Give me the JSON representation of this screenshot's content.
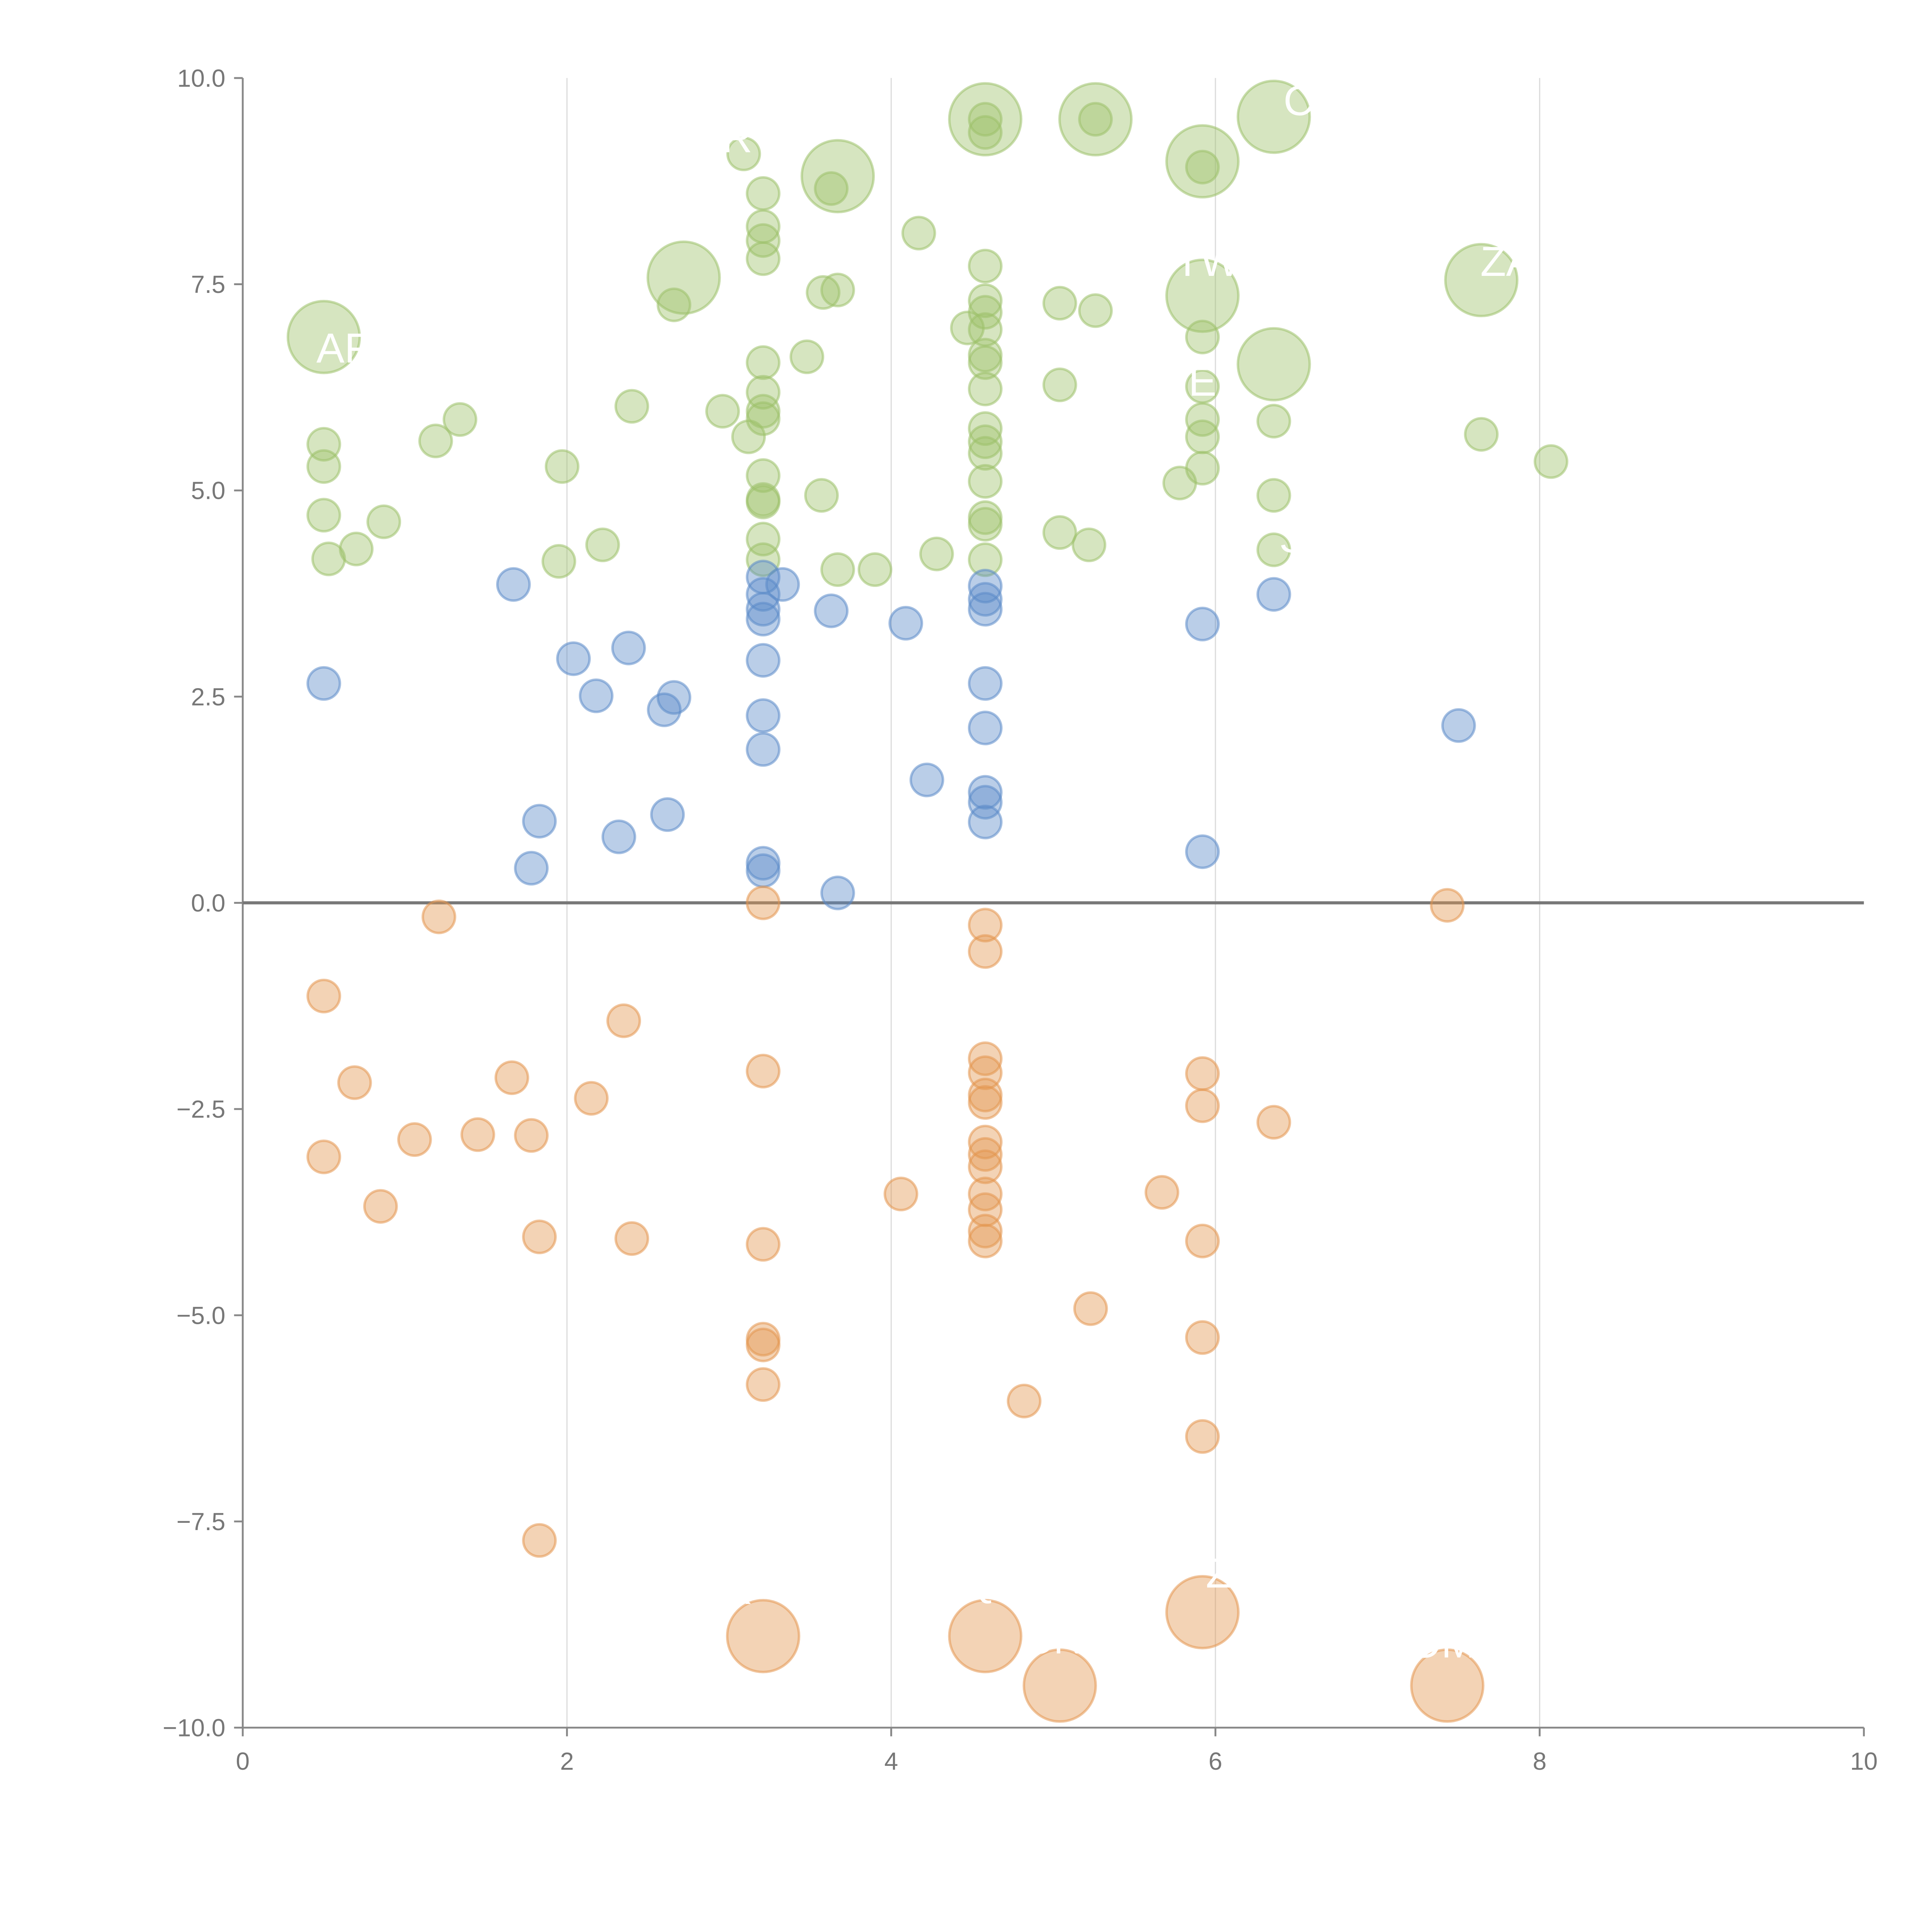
{
  "chart_data": {
    "type": "scatter",
    "title": "",
    "xlabel": "",
    "ylabel": "",
    "xlim": [
      0,
      10
    ],
    "ylim": [
      -10,
      10
    ],
    "x_ticks": [
      "0",
      "2",
      "4",
      "6",
      "8",
      "10"
    ],
    "y_ticks": [
      "10.0",
      "7.5",
      "5.0",
      "2.5",
      "0.0",
      "−2.5",
      "−5.0",
      "−7.5",
      "−10.0"
    ],
    "grid": "vertical",
    "reference_line_y": 0,
    "point_format": "[x, y, size(1=small,2=large)]",
    "series": [
      {
        "name": "green",
        "color": "#9dc16a",
        "points": [
          [
            0.5,
            5.56,
            1
          ],
          [
            0.5,
            5.29,
            1
          ],
          [
            0.5,
            4.7,
            1
          ],
          [
            0.53,
            4.17,
            1
          ],
          [
            0.7,
            4.29,
            1
          ],
          [
            0.87,
            4.62,
            1
          ],
          [
            1.19,
            5.6,
            1
          ],
          [
            1.34,
            5.86,
            1
          ],
          [
            1.97,
            5.29,
            1
          ],
          [
            1.95,
            4.14,
            1
          ],
          [
            2.22,
            4.34,
            1
          ],
          [
            2.4,
            6.02,
            1
          ],
          [
            2.66,
            7.25,
            1
          ],
          [
            2.96,
            5.96,
            1
          ],
          [
            3.12,
            5.65,
            1
          ],
          [
            3.09,
            9.08,
            1
          ],
          [
            3.21,
            8.6,
            1
          ],
          [
            3.21,
            8.2,
            1
          ],
          [
            3.21,
            8.03,
            1
          ],
          [
            3.21,
            7.81,
            1
          ],
          [
            3.21,
            6.55,
            1
          ],
          [
            3.21,
            6.19,
            1
          ],
          [
            3.21,
            5.96,
            1
          ],
          [
            3.21,
            5.87,
            1
          ],
          [
            3.21,
            5.18,
            1
          ],
          [
            3.21,
            4.89,
            1
          ],
          [
            3.21,
            4.86,
            1
          ],
          [
            3.21,
            4.41,
            1
          ],
          [
            3.21,
            4.16,
            1
          ],
          [
            3.48,
            6.62,
            1
          ],
          [
            3.58,
            7.4,
            1
          ],
          [
            3.67,
            7.43,
            1
          ],
          [
            3.63,
            8.66,
            1
          ],
          [
            3.57,
            4.94,
            1
          ],
          [
            3.67,
            4.04,
            1
          ],
          [
            3.9,
            4.04,
            1
          ],
          [
            4.17,
            8.12,
            1
          ],
          [
            4.28,
            4.23,
            1
          ],
          [
            4.47,
            6.97,
            1
          ],
          [
            4.58,
            7.72,
            1
          ],
          [
            4.58,
            7.3,
            1
          ],
          [
            4.58,
            7.16,
            1
          ],
          [
            4.58,
            6.95,
            1
          ],
          [
            4.58,
            6.64,
            1
          ],
          [
            4.58,
            6.55,
            1
          ],
          [
            4.58,
            6.23,
            1
          ],
          [
            4.58,
            5.75,
            1
          ],
          [
            4.58,
            5.59,
            1
          ],
          [
            4.58,
            5.45,
            1
          ],
          [
            4.58,
            5.11,
            1
          ],
          [
            4.58,
            4.67,
            1
          ],
          [
            4.58,
            4.59,
            1
          ],
          [
            4.58,
            4.16,
            1
          ],
          [
            4.58,
            9.5,
            1
          ],
          [
            4.58,
            9.34,
            1
          ],
          [
            5.04,
            7.27,
            1
          ],
          [
            5.26,
            7.18,
            1
          ],
          [
            5.04,
            6.28,
            1
          ],
          [
            5.04,
            4.49,
            1
          ],
          [
            5.22,
            4.34,
            1
          ],
          [
            5.26,
            9.5,
            1
          ],
          [
            5.78,
            5.09,
            1
          ],
          [
            5.92,
            8.92,
            1
          ],
          [
            5.92,
            6.86,
            1
          ],
          [
            5.92,
            6.26,
            1
          ],
          [
            5.92,
            5.86,
            1
          ],
          [
            5.92,
            5.65,
            1
          ],
          [
            5.92,
            5.27,
            1
          ],
          [
            6.36,
            5.84,
            1
          ],
          [
            6.36,
            4.94,
            1
          ],
          [
            6.36,
            4.28,
            1
          ],
          [
            7.64,
            5.68,
            1
          ],
          [
            8.07,
            5.35,
            1
          ],
          [
            0.5,
            6.86,
            2
          ],
          [
            2.72,
            7.58,
            2
          ],
          [
            3.67,
            8.81,
            2
          ],
          [
            4.58,
            9.5,
            2
          ],
          [
            5.26,
            9.5,
            2
          ],
          [
            5.92,
            8.99,
            2
          ],
          [
            5.92,
            7.36,
            2
          ],
          [
            6.36,
            9.53,
            2
          ],
          [
            6.36,
            6.53,
            2
          ],
          [
            7.64,
            7.55,
            2
          ]
        ]
      },
      {
        "name": "blue",
        "color": "#5b8bc9",
        "points": [
          [
            0.5,
            2.66,
            1
          ],
          [
            1.67,
            3.86,
            1
          ],
          [
            2.04,
            2.96,
            1
          ],
          [
            2.18,
            2.51,
            1
          ],
          [
            2.38,
            3.09,
            1
          ],
          [
            2.66,
            2.49,
            1
          ],
          [
            2.6,
            2.34,
            1
          ],
          [
            2.62,
            1.07,
            1
          ],
          [
            2.32,
            0.8,
            1
          ],
          [
            1.83,
            0.99,
            1
          ],
          [
            1.78,
            0.42,
            1
          ],
          [
            3.21,
            3.95,
            1
          ],
          [
            3.21,
            3.74,
            1
          ],
          [
            3.21,
            3.56,
            1
          ],
          [
            3.21,
            3.44,
            1
          ],
          [
            3.33,
            3.86,
            1
          ],
          [
            3.21,
            2.94,
            1
          ],
          [
            3.21,
            2.27,
            1
          ],
          [
            3.21,
            1.86,
            1
          ],
          [
            3.21,
            0.48,
            1
          ],
          [
            3.21,
            0.39,
            1
          ],
          [
            3.63,
            3.54,
            1
          ],
          [
            3.67,
            0.12,
            1
          ],
          [
            4.09,
            3.39,
            1
          ],
          [
            4.22,
            1.49,
            1
          ],
          [
            4.58,
            3.84,
            1
          ],
          [
            4.58,
            3.68,
            1
          ],
          [
            4.58,
            3.56,
            1
          ],
          [
            4.58,
            2.66,
            1
          ],
          [
            4.58,
            2.12,
            1
          ],
          [
            4.58,
            1.34,
            1
          ],
          [
            4.58,
            1.22,
            1
          ],
          [
            4.58,
            0.98,
            1
          ],
          [
            5.92,
            3.38,
            1
          ],
          [
            5.92,
            0.62,
            1
          ],
          [
            6.36,
            3.74,
            1
          ],
          [
            7.5,
            2.15,
            1
          ]
        ]
      },
      {
        "name": "orange",
        "color": "#e3954f",
        "points": [
          [
            0.5,
            -1.13,
            1
          ],
          [
            0.69,
            -2.18,
            1
          ],
          [
            0.5,
            -3.08,
            1
          ],
          [
            0.85,
            -3.68,
            1
          ],
          [
            1.06,
            -2.87,
            1
          ],
          [
            1.21,
            -0.17,
            1
          ],
          [
            1.45,
            -2.81,
            1
          ],
          [
            1.66,
            -2.12,
            1
          ],
          [
            1.78,
            -2.82,
            1
          ],
          [
            1.83,
            -4.05,
            1
          ],
          [
            1.83,
            -7.73,
            1
          ],
          [
            2.15,
            -2.37,
            1
          ],
          [
            2.35,
            -1.43,
            1
          ],
          [
            2.4,
            -4.07,
            1
          ],
          [
            3.21,
            0.0,
            1
          ],
          [
            3.21,
            -2.04,
            1
          ],
          [
            3.21,
            -4.14,
            1
          ],
          [
            3.21,
            -5.29,
            1
          ],
          [
            3.21,
            -5.36,
            1
          ],
          [
            3.21,
            -5.84,
            1
          ],
          [
            4.06,
            -3.53,
            1
          ],
          [
            4.58,
            -0.27,
            1
          ],
          [
            4.58,
            -0.59,
            1
          ],
          [
            4.58,
            -1.89,
            1
          ],
          [
            4.58,
            -2.06,
            1
          ],
          [
            4.58,
            -2.33,
            1
          ],
          [
            4.58,
            -2.42,
            1
          ],
          [
            4.58,
            -2.9,
            1
          ],
          [
            4.58,
            -3.05,
            1
          ],
          [
            4.58,
            -3.2,
            1
          ],
          [
            4.58,
            -3.53,
            1
          ],
          [
            4.58,
            -3.72,
            1
          ],
          [
            4.58,
            -3.98,
            1
          ],
          [
            4.58,
            -4.1,
            1
          ],
          [
            4.82,
            -6.04,
            1
          ],
          [
            5.23,
            -4.92,
            1
          ],
          [
            5.67,
            -3.51,
            1
          ],
          [
            5.92,
            -2.07,
            1
          ],
          [
            5.92,
            -2.46,
            1
          ],
          [
            5.92,
            -4.1,
            1
          ],
          [
            5.92,
            -5.27,
            1
          ],
          [
            5.92,
            -6.47,
            1
          ],
          [
            6.36,
            -2.66,
            1
          ],
          [
            7.43,
            -0.03,
            1
          ],
          [
            3.21,
            -8.89,
            2
          ],
          [
            4.58,
            -8.89,
            2
          ],
          [
            5.04,
            -9.49,
            2
          ],
          [
            5.92,
            -8.6,
            2
          ],
          [
            7.43,
            -9.49,
            2
          ]
        ]
      }
    ],
    "annotations": [
      {
        "text": "AF",
        "x": 0.62,
        "y": 6.55
      },
      {
        "text": "R",
        "x": 3.05,
        "y": 9.1
      },
      {
        "text": "CA",
        "x": 6.6,
        "y": 9.55
      },
      {
        "text": "TW",
        "x": 5.95,
        "y": 7.6
      },
      {
        "text": "ZA",
        "x": 7.8,
        "y": 7.6
      },
      {
        "text": "E",
        "x": 5.92,
        "y": 6.15
      },
      {
        "text": "S",
        "x": 6.48,
        "y": 4.25
      },
      {
        "text": "K",
        "x": 3.05,
        "y": -8.5
      },
      {
        "text": "Q",
        "x": 4.55,
        "y": -8.4
      },
      {
        "text": "CN",
        "x": 5.0,
        "y": -9.1
      },
      {
        "text": "Z",
        "x": 6.02,
        "y": -8.3
      },
      {
        "text": "OM",
        "x": 7.4,
        "y": -9.15
      }
    ]
  }
}
